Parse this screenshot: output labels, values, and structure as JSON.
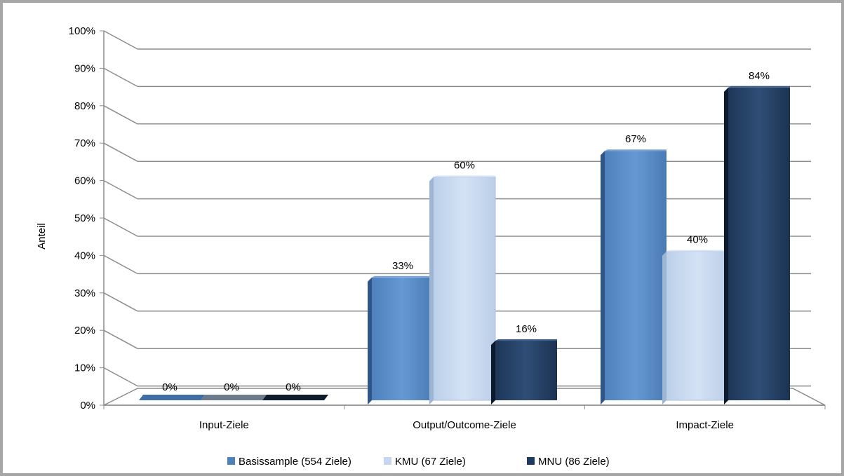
{
  "chart_data": {
    "type": "bar",
    "ylabel": "Anteil",
    "ylim": [
      0,
      100
    ],
    "yticks": [
      "0%",
      "10%",
      "20%",
      "30%",
      "40%",
      "50%",
      "60%",
      "70%",
      "80%",
      "90%",
      "100%"
    ],
    "categories": [
      "Input-Ziele",
      "Output/Outcome-Ziele",
      "Impact-Ziele"
    ],
    "series": [
      {
        "name": "Basissample (554 Ziele)",
        "values": [
          0,
          33,
          67
        ],
        "labels": [
          "0%",
          "33%",
          "67%"
        ],
        "color": "#4f81bd"
      },
      {
        "name": "KMU (67 Ziele)",
        "values": [
          0,
          60,
          40
        ],
        "labels": [
          "0%",
          "60%",
          "40%"
        ],
        "color": "#c5d7ee"
      },
      {
        "name": "MNU (86 Ziele)",
        "values": [
          0,
          16,
          84
        ],
        "labels": [
          "0%",
          "16%",
          "84%"
        ],
        "color": "#1f3a5f"
      }
    ],
    "grid": true,
    "legend": "bottom"
  }
}
